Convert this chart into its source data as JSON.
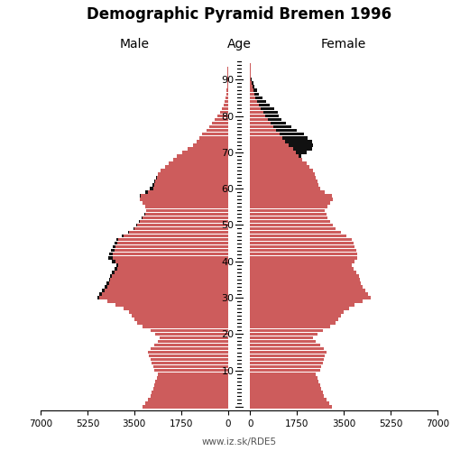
{
  "title": "Demographic Pyramid Bremen 1996",
  "label_male": "Male",
  "label_female": "Female",
  "label_age": "Age",
  "footnote": "www.iz.sk/RDE5",
  "xlim": 7000,
  "color_main": "#CD5C5C",
  "color_overlay": "#111111",
  "bar_height": 0.9,
  "ages": [
    0,
    1,
    2,
    3,
    4,
    5,
    6,
    7,
    8,
    9,
    10,
    11,
    12,
    13,
    14,
    15,
    16,
    17,
    18,
    19,
    20,
    21,
    22,
    23,
    24,
    25,
    26,
    27,
    28,
    29,
    30,
    31,
    32,
    33,
    34,
    35,
    36,
    37,
    38,
    39,
    40,
    41,
    42,
    43,
    44,
    45,
    46,
    47,
    48,
    49,
    50,
    51,
    52,
    53,
    54,
    55,
    56,
    57,
    58,
    59,
    60,
    61,
    62,
    63,
    64,
    65,
    66,
    67,
    68,
    69,
    70,
    71,
    72,
    73,
    74,
    75,
    76,
    77,
    78,
    79,
    80,
    81,
    82,
    83,
    84,
    85,
    86,
    87,
    88,
    89,
    90,
    91,
    92,
    93,
    94,
    95
  ],
  "male_main": [
    3200,
    3100,
    3000,
    2900,
    2850,
    2800,
    2750,
    2700,
    2650,
    2600,
    2750,
    2800,
    2850,
    2900,
    2950,
    3000,
    2900,
    2750,
    2600,
    2550,
    2700,
    2900,
    3200,
    3400,
    3500,
    3600,
    3700,
    3900,
    4200,
    4500,
    4800,
    4700,
    4600,
    4500,
    4450,
    4400,
    4350,
    4250,
    4150,
    4100,
    4200,
    4300,
    4300,
    4250,
    4200,
    4150,
    4100,
    3900,
    3700,
    3500,
    3400,
    3300,
    3200,
    3100,
    3050,
    3100,
    3200,
    3300,
    3250,
    3000,
    2800,
    2750,
    2700,
    2650,
    2600,
    2500,
    2350,
    2200,
    2050,
    1900,
    1700,
    1500,
    1300,
    1150,
    1050,
    950,
    800,
    700,
    600,
    500,
    380,
    300,
    230,
    170,
    120,
    80,
    55,
    40,
    25,
    15,
    10,
    5,
    3,
    2,
    1,
    1
  ],
  "male_overlay": [
    0,
    0,
    0,
    0,
    0,
    0,
    0,
    0,
    0,
    0,
    0,
    0,
    0,
    0,
    0,
    0,
    0,
    0,
    0,
    0,
    0,
    0,
    0,
    0,
    0,
    0,
    0,
    0,
    0,
    0,
    80,
    100,
    120,
    100,
    80,
    50,
    60,
    80,
    100,
    80,
    120,
    180,
    150,
    120,
    100,
    80,
    60,
    50,
    40,
    30,
    20,
    15,
    10,
    8,
    6,
    0,
    0,
    0,
    40,
    80,
    120,
    80,
    40,
    25,
    15,
    0,
    0,
    0,
    0,
    0,
    0,
    0,
    0,
    0,
    0,
    0,
    0,
    0,
    0,
    0,
    0,
    0,
    0,
    0,
    0,
    0,
    0,
    0,
    0,
    0,
    0,
    0,
    0,
    0,
    0,
    0
  ],
  "female_main": [
    3050,
    2950,
    2850,
    2750,
    2700,
    2650,
    2600,
    2550,
    2500,
    2450,
    2600,
    2650,
    2700,
    2750,
    2800,
    2850,
    2750,
    2600,
    2450,
    2350,
    2500,
    2700,
    3000,
    3200,
    3300,
    3400,
    3500,
    3700,
    3900,
    4200,
    4500,
    4400,
    4300,
    4200,
    4150,
    4100,
    4050,
    3950,
    3850,
    3800,
    3900,
    4000,
    4000,
    3950,
    3900,
    3850,
    3800,
    3600,
    3400,
    3200,
    3100,
    3000,
    2900,
    2850,
    2800,
    2900,
    3000,
    3100,
    3050,
    2800,
    2600,
    2550,
    2500,
    2450,
    2400,
    2350,
    2200,
    2100,
    1950,
    1800,
    1700,
    1600,
    1450,
    1300,
    1200,
    1100,
    950,
    850,
    750,
    650,
    550,
    480,
    400,
    330,
    260,
    200,
    150,
    110,
    75,
    50,
    30,
    18,
    10,
    6,
    3,
    1
  ],
  "female_overlay": [
    0,
    0,
    0,
    0,
    0,
    0,
    0,
    0,
    0,
    0,
    0,
    0,
    0,
    0,
    0,
    0,
    0,
    0,
    0,
    0,
    0,
    0,
    0,
    0,
    0,
    0,
    0,
    0,
    0,
    0,
    0,
    0,
    0,
    0,
    0,
    0,
    0,
    0,
    0,
    0,
    0,
    0,
    0,
    0,
    0,
    0,
    0,
    0,
    0,
    0,
    0,
    0,
    0,
    0,
    0,
    0,
    0,
    0,
    0,
    0,
    0,
    0,
    0,
    0,
    0,
    0,
    0,
    0,
    0,
    100,
    400,
    700,
    900,
    1000,
    950,
    900,
    800,
    700,
    600,
    500,
    500,
    550,
    480,
    400,
    320,
    250,
    180,
    130,
    85,
    55,
    30,
    15,
    8,
    4,
    2,
    0
  ]
}
